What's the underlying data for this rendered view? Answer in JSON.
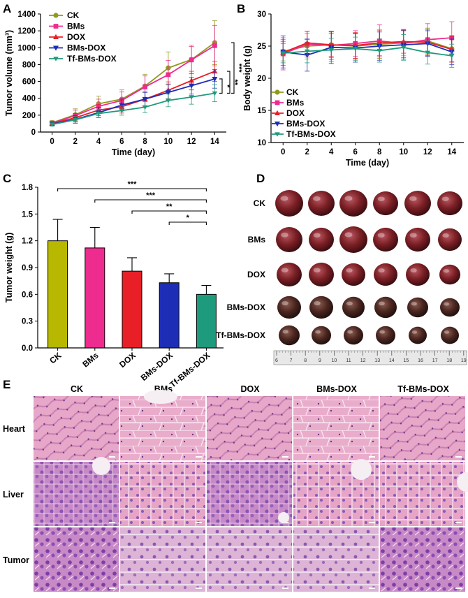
{
  "colors": {
    "CK": "#8f9a1e",
    "BMs": "#ee2b8f",
    "DOX": "#e81f27",
    "BMs-DOX": "#1d2db5",
    "Tf-BMs-DOX": "#1e9a7c",
    "barCK": "#b8b800"
  },
  "chart_data": [
    {
      "panel": "A",
      "type": "line",
      "xlabel": "Time (day)",
      "ylabel": "Tumor volume (mm³)",
      "x": [
        0,
        2,
        4,
        6,
        8,
        10,
        12,
        14
      ],
      "xlim": [
        -1,
        15
      ],
      "ylim": [
        0,
        1400
      ],
      "xticks": [
        "0",
        "2",
        "4",
        "6",
        "8",
        "10",
        "12",
        "14"
      ],
      "yticks": [
        "0",
        "200",
        "400",
        "600",
        "800",
        "1000",
        "1200",
        "1400"
      ],
      "series": [
        {
          "name": "CK",
          "values": [
            110,
            205,
            335,
            390,
            545,
            760,
            860,
            1060
          ],
          "err": [
            25,
            70,
            90,
            110,
            140,
            190,
            170,
            260
          ]
        },
        {
          "name": "BMs",
          "values": [
            105,
            195,
            305,
            375,
            535,
            680,
            855,
            1025
          ],
          "err": [
            25,
            65,
            85,
            100,
            130,
            170,
            160,
            240
          ]
        },
        {
          "name": "DOX",
          "values": [
            100,
            170,
            260,
            300,
            390,
            495,
            610,
            720
          ],
          "err": [
            20,
            50,
            65,
            75,
            85,
            100,
            110,
            120
          ]
        },
        {
          "name": "BMs-DOX",
          "values": [
            95,
            150,
            230,
            320,
            390,
            470,
            550,
            630
          ],
          "err": [
            20,
            45,
            60,
            70,
            80,
            90,
            100,
            110
          ]
        },
        {
          "name": "Tf-BMs-DOX",
          "values": [
            90,
            145,
            220,
            255,
            295,
            375,
            415,
            460
          ],
          "err": [
            20,
            40,
            50,
            55,
            65,
            75,
            85,
            100
          ]
        }
      ],
      "significance": [
        "***",
        "**",
        "*"
      ]
    },
    {
      "panel": "B",
      "type": "line",
      "xlabel": "Time (day)",
      "ylabel": "Body weight (g)",
      "x": [
        0,
        2,
        4,
        6,
        8,
        10,
        12,
        14
      ],
      "xlim": [
        -1,
        15
      ],
      "ylim": [
        10,
        30
      ],
      "xticks": [
        "0",
        "2",
        "4",
        "6",
        "8",
        "10",
        "12",
        "14"
      ],
      "yticks": [
        "10",
        "15",
        "20",
        "25",
        "30"
      ],
      "series": [
        {
          "name": "CK",
          "values": [
            24.2,
            25.0,
            25.2,
            25.0,
            25.3,
            25.5,
            25.8,
            24.6
          ],
          "err": [
            1.5,
            2.0,
            2.0,
            2.0,
            2.2,
            2.0,
            2.0,
            2.0
          ]
        },
        {
          "name": "BMs",
          "values": [
            23.8,
            25.3,
            25.1,
            25.4,
            25.8,
            25.4,
            26.0,
            26.3
          ],
          "err": [
            2.5,
            2.0,
            2.2,
            2.0,
            2.5,
            2.2,
            2.5,
            2.5
          ]
        },
        {
          "name": "DOX",
          "values": [
            24.0,
            25.5,
            25.2,
            25.1,
            25.5,
            25.7,
            25.6,
            24.5
          ],
          "err": [
            2.0,
            1.8,
            1.8,
            2.0,
            2.0,
            1.8,
            2.0,
            2.0
          ]
        },
        {
          "name": "BMs-DOX",
          "values": [
            24.1,
            23.6,
            24.8,
            24.7,
            25.0,
            25.2,
            25.4,
            24.1
          ],
          "err": [
            2.5,
            2.5,
            2.5,
            2.2,
            2.2,
            2.2,
            2.0,
            2.0
          ]
        },
        {
          "name": "Tf-BMs-DOX",
          "values": [
            23.9,
            24.2,
            24.4,
            24.6,
            24.3,
            24.8,
            24.0,
            23.5
          ],
          "err": [
            1.5,
            1.8,
            1.8,
            1.8,
            1.8,
            2.0,
            1.8,
            1.8
          ]
        }
      ],
      "legend": [
        "CK",
        "BMs",
        "DOX",
        "BMs-DOX",
        "Tf-BMs-DOX"
      ]
    },
    {
      "panel": "C",
      "type": "bar",
      "ylabel": "Tumor weight (g)",
      "ylim": [
        0,
        1.8
      ],
      "yticks": [
        "0.0",
        "0.3",
        "0.6",
        "0.9",
        "1.2",
        "1.5",
        "1.8"
      ],
      "categories": [
        "CK",
        "BMs",
        "DOX",
        "BMs-DOX",
        "Tf-BMs-DOX"
      ],
      "values": [
        1.2,
        1.12,
        0.86,
        0.73,
        0.6
      ],
      "err": [
        0.24,
        0.23,
        0.15,
        0.1,
        0.1
      ],
      "significance": [
        {
          "from": "CK",
          "to": "Tf-BMs-DOX",
          "label": "***"
        },
        {
          "from": "BMs",
          "to": "Tf-BMs-DOX",
          "label": "***"
        },
        {
          "from": "DOX",
          "to": "Tf-BMs-DOX",
          "label": "**"
        },
        {
          "from": "BMs-DOX",
          "to": "Tf-BMs-DOX",
          "label": "*"
        }
      ]
    }
  ],
  "panelD": {
    "letter": "D",
    "rows": [
      "CK",
      "BMs",
      "DOX",
      "BMs-DOX",
      "Tf-BMs-DOX"
    ],
    "ruler": [
      "6",
      "7",
      "8",
      "9",
      "10",
      "11",
      "12",
      "13",
      "14",
      "15",
      "16",
      "17",
      "18",
      "19"
    ]
  },
  "panelE": {
    "letter": "E",
    "cols": [
      "CK",
      "BMs",
      "DOX",
      "BMs-DOX",
      "Tf-BMs-DOX"
    ],
    "rows": [
      "Heart",
      "Liver",
      "Tumor"
    ]
  },
  "letters": {
    "A": "A",
    "B": "B",
    "C": "C"
  }
}
